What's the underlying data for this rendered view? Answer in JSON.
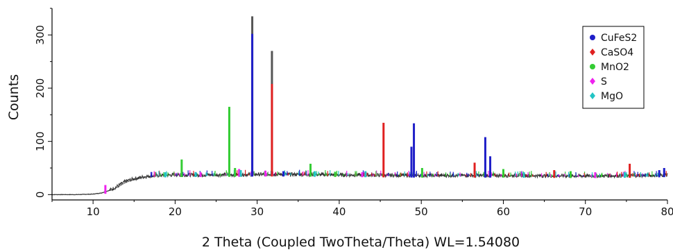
{
  "chart_data": {
    "type": "line",
    "title": "",
    "xlabel": "2 Theta (Coupled TwoTheta/Theta) WL=1.54080",
    "ylabel": "Counts",
    "xlim": [
      5,
      80
    ],
    "ylim": [
      -10,
      350
    ],
    "x_ticks": [
      10,
      20,
      30,
      40,
      50,
      60,
      70,
      80
    ],
    "y_ticks": [
      0,
      100,
      200,
      300
    ],
    "grid": false,
    "legend_position": "top-right",
    "colors": {
      "measured": "#333333",
      "background": "#7a7a7a",
      "CuFeS2": "#1f1fc8",
      "CaSO4": "#e02020",
      "MnO2": "#33cc33",
      "S": "#ee22ee",
      "MgO": "#22c4c4"
    },
    "baseline_profile": {
      "x": [
        5,
        8,
        10,
        11,
        12,
        13,
        14,
        15,
        16,
        17,
        18,
        20,
        25,
        30,
        35,
        40,
        50,
        60,
        70,
        78,
        80
      ],
      "y": [
        0,
        0,
        1,
        3,
        8,
        16,
        25,
        30,
        33,
        35,
        36,
        37,
        37,
        38,
        38,
        37,
        36,
        36,
        35,
        36,
        37
      ]
    },
    "series": [
      {
        "name": "CuFeS2",
        "marker": "circle",
        "peaks": [
          [
            29.4,
            302
          ],
          [
            33.2,
            44
          ],
          [
            48.8,
            90
          ],
          [
            49.1,
            134
          ],
          [
            57.8,
            108
          ],
          [
            58.4,
            72
          ],
          [
            79.0,
            46
          ],
          [
            79.6,
            50
          ]
        ]
      },
      {
        "name": "CaSO4",
        "marker": "diamond",
        "peaks": [
          [
            31.8,
            208
          ],
          [
            45.4,
            135
          ],
          [
            56.5,
            60
          ],
          [
            66.2,
            46
          ],
          [
            75.4,
            58
          ]
        ]
      },
      {
        "name": "MnO2",
        "marker": "circle",
        "peaks": [
          [
            20.8,
            66
          ],
          [
            26.6,
            165
          ],
          [
            27.3,
            50
          ],
          [
            36.5,
            58
          ],
          [
            39.5,
            43
          ],
          [
            50.1,
            50
          ],
          [
            60.0,
            48
          ],
          [
            68.2,
            44
          ]
        ]
      },
      {
        "name": "S",
        "marker": "diamond",
        "peaks": [
          [
            11.5,
            18
          ],
          [
            23.1,
            42
          ],
          [
            27.8,
            48
          ],
          [
            31.0,
            45
          ],
          [
            42.8,
            42
          ],
          [
            71.2,
            42
          ]
        ]
      },
      {
        "name": "MgO",
        "marker": "diamond",
        "peaks": [
          [
            18.8,
            42
          ],
          [
            22.5,
            42
          ],
          [
            28.0,
            46
          ],
          [
            37.0,
            44
          ],
          [
            43.2,
            44
          ],
          [
            62.5,
            42
          ],
          [
            74.8,
            42
          ]
        ]
      }
    ],
    "measured_extra_peaks": [
      [
        29.4,
        335
      ],
      [
        31.8,
        270
      ]
    ]
  }
}
